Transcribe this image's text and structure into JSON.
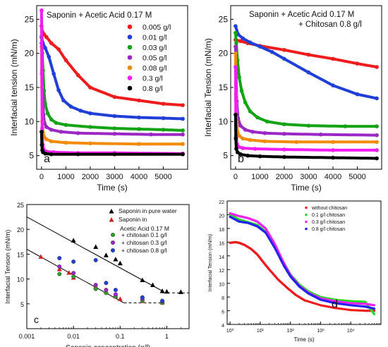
{
  "chart_data": [
    {
      "panel": "a",
      "type": "line",
      "title": "Saponin + Acetic Acid 0.17 M",
      "xlabel": "Time (s)",
      "ylabel": "Interfacial tension (mN/m)",
      "xlim": [
        -200,
        6000
      ],
      "ylim": [
        3,
        27
      ],
      "xticks": [
        0,
        1000,
        2000,
        3000,
        4000,
        5000
      ],
      "yticks": [
        5,
        10,
        15,
        20,
        25
      ],
      "legend_position": "top-right",
      "series": [
        {
          "name": "0.005 g/l",
          "color": "#ee1c1c",
          "x": [
            0,
            30,
            100,
            200,
            400,
            700,
            1000,
            1500,
            2000,
            3000,
            4000,
            5000,
            5800
          ],
          "y": [
            24,
            23.2,
            22.8,
            22.4,
            21.5,
            20.6,
            19,
            16.8,
            15,
            13.6,
            13.1,
            12.6,
            12.4
          ]
        },
        {
          "name": "0.01 g/l",
          "color": "#1f3fd6",
          "x": [
            0,
            50,
            150,
            300,
            500,
            700,
            900,
            1200,
            1600,
            2000,
            3000,
            4000,
            5000,
            5800
          ],
          "y": [
            22.5,
            21.5,
            20.8,
            19.5,
            17,
            14.6,
            13.1,
            12.2,
            11.6,
            11.2,
            10.8,
            10.6,
            10.5,
            10.4
          ]
        },
        {
          "name": "0.03 g/l",
          "color": "#14a314",
          "x": [
            0,
            30,
            60,
            100,
            150,
            250,
            400,
            600,
            1000,
            2000,
            3000,
            4000,
            5000,
            5800
          ],
          "y": [
            22.3,
            20,
            17.5,
            14.5,
            12.6,
            11.2,
            10.3,
            9.8,
            9.5,
            9.2,
            9,
            8.9,
            8.8,
            8.7
          ]
        },
        {
          "name": "0.05 g/l",
          "color": "#9b27c4",
          "x": [
            0,
            20,
            50,
            80,
            120,
            200,
            400,
            800,
            1500,
            3000,
            4500,
            5800
          ],
          "y": [
            21.5,
            17.5,
            13.5,
            11,
            9.8,
            9.2,
            8.8,
            8.5,
            8.3,
            8.2,
            8.1,
            8.1
          ]
        },
        {
          "name": "0.08 g/l",
          "color": "#f28a0a",
          "x": [
            0,
            15,
            30,
            60,
            100,
            200,
            400,
            1000,
            2000,
            4000,
            5800
          ],
          "y": [
            21,
            15,
            10,
            8.4,
            7.8,
            7.4,
            7.1,
            6.9,
            6.8,
            6.7,
            6.7
          ]
        },
        {
          "name": "0.3 g/l",
          "color": "#f21cf2",
          "x": [
            0,
            10,
            25,
            50,
            100,
            200,
            500,
            1500,
            3000,
            5800
          ],
          "y": [
            26.3,
            17,
            9,
            6.6,
            5.8,
            5.6,
            5.5,
            5.4,
            5.4,
            5.3
          ]
        },
        {
          "name": "0.8 g/l",
          "color": "#000000",
          "x": [
            0,
            10,
            30,
            60,
            150,
            400,
            1500,
            3000,
            5800
          ],
          "y": [
            8.5,
            6.6,
            5.8,
            5.5,
            5.3,
            5.2,
            5.2,
            5.2,
            5.2
          ]
        }
      ]
    },
    {
      "panel": "b",
      "type": "line",
      "title": "Saponin + Acetic Acid 0.17 M",
      "subtitle": "+ Chitosan 0.8 g/l",
      "xlabel": "Time (s)",
      "ylabel": "Interfacial Tension (mN/m)",
      "xlim": [
        -200,
        6000
      ],
      "ylim": [
        3,
        27
      ],
      "xticks": [
        0,
        1000,
        2000,
        3000,
        4000,
        5000
      ],
      "yticks": [
        5,
        10,
        15,
        20,
        25
      ],
      "series": [
        {
          "name": "0.005 g/l",
          "color": "#ee1c1c",
          "x": [
            0,
            200,
            500,
            1000,
            2000,
            3000,
            4000,
            5000,
            5800
          ],
          "y": [
            22,
            21.8,
            21.5,
            21.1,
            20.5,
            19.8,
            19.2,
            18.5,
            18
          ]
        },
        {
          "name": "0.01 g/l",
          "color": "#1f3fd6",
          "x": [
            0,
            100,
            300,
            600,
            1000,
            1500,
            2000,
            3000,
            4000,
            5000,
            5800
          ],
          "y": [
            24,
            22.8,
            22.2,
            21.6,
            21,
            20.2,
            19.2,
            17.2,
            15.3,
            14,
            13.4
          ]
        },
        {
          "name": "0.03 g/l",
          "color": "#14a314",
          "x": [
            0,
            30,
            80,
            150,
            250,
            400,
            600,
            900,
            1300,
            2000,
            3000,
            4500,
            5800
          ],
          "y": [
            23,
            21.5,
            19,
            16.5,
            14.5,
            12.8,
            11.5,
            10.6,
            10,
            9.6,
            9.4,
            9.3,
            9.3
          ]
        },
        {
          "name": "0.05 g/l",
          "color": "#9b27c4",
          "x": [
            0,
            20,
            50,
            100,
            200,
            400,
            700,
            1200,
            2000,
            3500,
            5800
          ],
          "y": [
            21,
            17,
            13,
            10.5,
            9.4,
            8.8,
            8.5,
            8.3,
            8.2,
            8.1,
            8
          ]
        },
        {
          "name": "0.08 g/l",
          "color": "#f28a0a",
          "x": [
            0,
            15,
            40,
            80,
            150,
            300,
            600,
            1200,
            2500,
            4000,
            5800
          ],
          "y": [
            20,
            14,
            10,
            8.5,
            7.9,
            7.5,
            7.3,
            7.1,
            7,
            7,
            7
          ]
        },
        {
          "name": "0.3 g/l",
          "color": "#f21cf2",
          "x": [
            0,
            10,
            30,
            60,
            120,
            300,
            800,
            2000,
            4000,
            5800
          ],
          "y": [
            18,
            11,
            7.8,
            6.7,
            6.3,
            6.1,
            6,
            5.9,
            5.8,
            5.8
          ]
        },
        {
          "name": "0.8 g/l",
          "color": "#000000",
          "x": [
            0,
            10,
            30,
            80,
            200,
            500,
            1000,
            2000,
            4000,
            5800
          ],
          "y": [
            11,
            7.5,
            6,
            5.5,
            5.2,
            5,
            4.9,
            4.8,
            4.7,
            4.6
          ]
        }
      ]
    },
    {
      "panel": "c",
      "type": "scatter",
      "xlabel": "Saponin concentration (g/l)",
      "ylabel": "Interfacial Tension (mN/m)",
      "xscale": "log",
      "xlim": [
        0.001,
        3
      ],
      "ylim": [
        0,
        25
      ],
      "xticks": [
        0.001,
        0.01,
        0.1,
        1
      ],
      "xticklabels": [
        "0.001",
        "0.01",
        "0.1",
        "1"
      ],
      "yticks": [
        5,
        10,
        15,
        20,
        25
      ],
      "legend_position": "top-right",
      "legend_texts": [
        "Saponin in pure water",
        "Saponin in",
        "Acetic Acid 0.17 M",
        "+ chitosan 0.1 g/l",
        "+ chitosan 0.3 g/l",
        "+ chitosan 0.8 g/l"
      ],
      "series": [
        {
          "name": "Saponin in pure water",
          "marker": "triangle",
          "color": "#000000",
          "x": [
            0.01,
            0.03,
            0.05,
            0.08,
            0.1,
            0.3,
            0.5,
            0.8,
            1,
            2
          ],
          "y": [
            17.8,
            16.5,
            14.8,
            14,
            13.2,
            9.8,
            8.8,
            7.6,
            7.5,
            7.4
          ]
        },
        {
          "name": "Saponin in Acetic Acid 0.17 M",
          "marker": "triangle",
          "color": "#d02020",
          "x": [
            0.002,
            0.005,
            0.008,
            0.01,
            0.03,
            0.05,
            0.08,
            0.1,
            0.3,
            0.8
          ],
          "y": [
            14.5,
            12,
            11.3,
            10.3,
            8.5,
            7.5,
            6.5,
            6,
            5.6,
            5.3
          ]
        },
        {
          "name": "+ chitosan 0.1 g/l",
          "marker": "circle",
          "color": "#2ca02c",
          "x": [
            0.005,
            0.01,
            0.03,
            0.05,
            0.08,
            0.3,
            0.8
          ],
          "y": [
            11,
            10.5,
            8,
            7.2,
            6.5,
            5.6,
            5.2
          ]
        },
        {
          "name": "+ chitosan 0.3 g/l",
          "marker": "circle",
          "color": "#9b27c4",
          "x": [
            0.005,
            0.01,
            0.03,
            0.05,
            0.08,
            0.3,
            0.8
          ],
          "y": [
            12.5,
            11.2,
            8.8,
            7.8,
            6.9,
            6,
            5.5
          ]
        },
        {
          "name": "+ chitosan 0.8 g/l",
          "marker": "circle",
          "color": "#1f3fd6",
          "x": [
            0.005,
            0.01,
            0.03,
            0.05,
            0.08,
            0.3,
            0.8
          ],
          "y": [
            14.2,
            13.5,
            13.8,
            9.2,
            7.8,
            6.3,
            5.6
          ]
        }
      ],
      "fit_lines": [
        {
          "style": "solid",
          "x": [
            0.001,
            0.8
          ],
          "y": [
            22.5,
            7.6
          ]
        },
        {
          "style": "solid",
          "x": [
            0.001,
            0.12
          ],
          "y": [
            16,
            5.2
          ]
        },
        {
          "style": "dashed",
          "x": [
            0.8,
            3
          ],
          "y": [
            7.2,
            7.2
          ]
        },
        {
          "style": "dashed",
          "x": [
            0.12,
            0.9
          ],
          "y": [
            5.2,
            5.2
          ]
        }
      ]
    },
    {
      "panel": "d",
      "type": "scatter",
      "xlabel": "Time (s)",
      "ylabel": "Interfacial Tension (mN/m)",
      "xscale": "log",
      "xlim": [
        0.8,
        100000
      ],
      "ylim": [
        4,
        22
      ],
      "xticks": [
        1,
        10,
        100,
        1000,
        10000
      ],
      "xticklabels": [
        "10⁰",
        "10¹",
        "10²",
        "10³",
        "10⁴"
      ],
      "yticks": [
        4,
        6,
        8,
        10,
        12,
        14,
        16,
        18,
        20,
        22
      ],
      "legend_position": "top-right",
      "series": [
        {
          "name": "without chitosan",
          "color": "#ee1c1c",
          "x": [
            1,
            1.5,
            2,
            3,
            5,
            8,
            12,
            20,
            40,
            80,
            150,
            300,
            1000,
            3000,
            10000,
            30000,
            60000
          ],
          "y": [
            15.9,
            16,
            15.9,
            15.6,
            15,
            14.2,
            13.2,
            12,
            10.5,
            9.3,
            8.3,
            7.5,
            6.8,
            6.4,
            6.1,
            6,
            6
          ]
        },
        {
          "name": "0.1 g/l chitosan",
          "color": "#22dd22",
          "x": [
            1,
            2,
            4,
            8,
            15,
            30,
            60,
            100,
            200,
            400,
            1000,
            3000,
            10000,
            30000,
            60000
          ],
          "y": [
            20,
            19.3,
            18.9,
            18.5,
            17.5,
            15.6,
            13,
            11.3,
            9.8,
            8.8,
            8,
            7.6,
            7.4,
            7.3,
            5.5
          ]
        },
        {
          "name": "0.3 g/l chitosan",
          "color": "#ee22ee",
          "x": [
            1,
            2,
            4,
            8,
            15,
            30,
            60,
            100,
            200,
            400,
            1000,
            3000,
            10000,
            30000,
            60000
          ],
          "y": [
            20.2,
            19.8,
            19.5,
            19,
            18,
            15.8,
            13,
            11.2,
            9.6,
            8.6,
            7.8,
            7.4,
            7.1,
            7,
            6.8
          ]
        },
        {
          "name": "0.8 g/l chitosan",
          "color": "#2222ee",
          "x": [
            1,
            2,
            4,
            8,
            15,
            30,
            60,
            100,
            200,
            400,
            1000,
            3000,
            10000,
            30000,
            60000
          ],
          "y": [
            19.7,
            19,
            18.8,
            18.3,
            17.4,
            15.2,
            12.6,
            11,
            9.5,
            8.5,
            7.6,
            7.1,
            6.8,
            6.6,
            6.3
          ]
        }
      ]
    }
  ]
}
